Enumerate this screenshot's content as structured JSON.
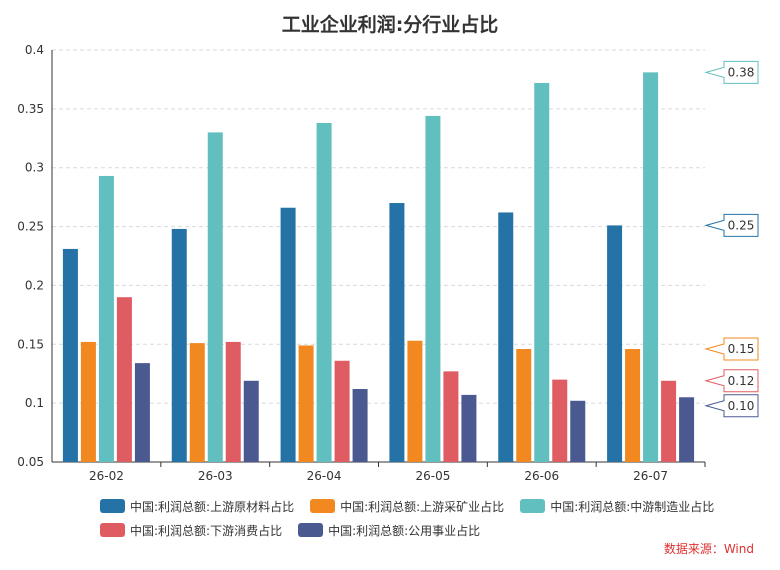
{
  "chart_data": {
    "type": "bar",
    "title": "工业企业利润:分行业占比",
    "categories": [
      "26-02",
      "26-03",
      "26-04",
      "26-05",
      "26-06",
      "26-07"
    ],
    "ylim": [
      0.05,
      0.4
    ],
    "yticks": [
      "0.05",
      "0.1",
      "0.15",
      "0.2",
      "0.25",
      "0.3",
      "0.35",
      "0.4"
    ],
    "grid": true,
    "legend_position": "bottom",
    "series": [
      {
        "name": "中国:利润总额:上游原材料占比",
        "color": "#2573a6",
        "values": [
          0.231,
          0.248,
          0.266,
          0.27,
          0.262,
          0.251
        ]
      },
      {
        "name": "中国:利润总额:上游采矿业占比",
        "color": "#f18920",
        "values": [
          0.152,
          0.151,
          0.149,
          0.153,
          0.146,
          0.146
        ]
      },
      {
        "name": "中国:利润总额:中游制造业占比",
        "color": "#62bfbf",
        "values": [
          0.293,
          0.33,
          0.338,
          0.344,
          0.372,
          0.381
        ]
      },
      {
        "name": "中国:利润总额:下游消费占比",
        "color": "#e05c63",
        "values": [
          0.19,
          0.152,
          0.136,
          0.127,
          0.12,
          0.119
        ]
      },
      {
        "name": "中国:利润总额:公用事业占比",
        "color": "#4a5a91",
        "values": [
          0.134,
          0.119,
          0.112,
          0.107,
          0.102,
          0.105
        ]
      }
    ],
    "end_labels": [
      {
        "text": "0.38",
        "value": 0.381,
        "series": 2
      },
      {
        "text": "0.25",
        "value": 0.251,
        "series": 0
      },
      {
        "text": "0.15",
        "value": 0.146,
        "series": 1
      },
      {
        "text": "0.12",
        "value": 0.119,
        "series": 3
      },
      {
        "text": "0.10",
        "value": 0.105,
        "series": 4
      }
    ]
  },
  "source": "数据来源：Wind"
}
